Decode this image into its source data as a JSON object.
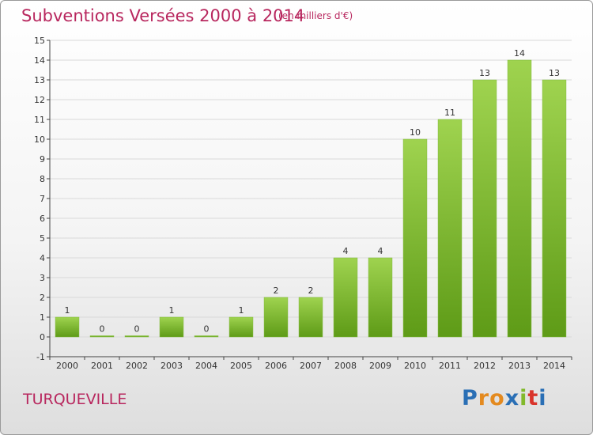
{
  "header": {
    "title": "Subventions Versées 2000 à 2014",
    "subtitle": "(en milliers d'€)"
  },
  "footer": {
    "commune": "TURQUEVILLE",
    "logo": {
      "letters": [
        "P",
        "r",
        "o",
        "x",
        "i",
        "t",
        "i"
      ],
      "colors": [
        "#2a6fb5",
        "#e48a1f",
        "#e48a1f",
        "#2a6fb5",
        "#82b92c",
        "#d9342b",
        "#2a6fb5"
      ]
    }
  },
  "colors": {
    "bar_top": "#9fd34f",
    "bar_bottom": "#5e9b17",
    "grid": "#d9d9d9",
    "axis": "#444444",
    "title": "#b8275e"
  },
  "chart_data": {
    "type": "bar",
    "title": "Subventions Versées 2000 à 2014",
    "subtitle": "(en milliers d'€)",
    "categories": [
      "2000",
      "2001",
      "2002",
      "2003",
      "2004",
      "2005",
      "2006",
      "2007",
      "2008",
      "2009",
      "2010",
      "2011",
      "2012",
      "2013",
      "2014"
    ],
    "values": [
      1,
      0,
      0,
      1,
      0,
      1,
      2,
      2,
      4,
      4,
      10,
      11,
      13,
      14,
      13
    ],
    "ylim": [
      -1,
      15
    ],
    "yticks": [
      -1,
      0,
      1,
      2,
      3,
      4,
      5,
      6,
      7,
      8,
      9,
      10,
      11,
      12,
      13,
      14,
      15
    ],
    "xlabel": "",
    "ylabel": "",
    "grid": true,
    "legend": "none"
  }
}
